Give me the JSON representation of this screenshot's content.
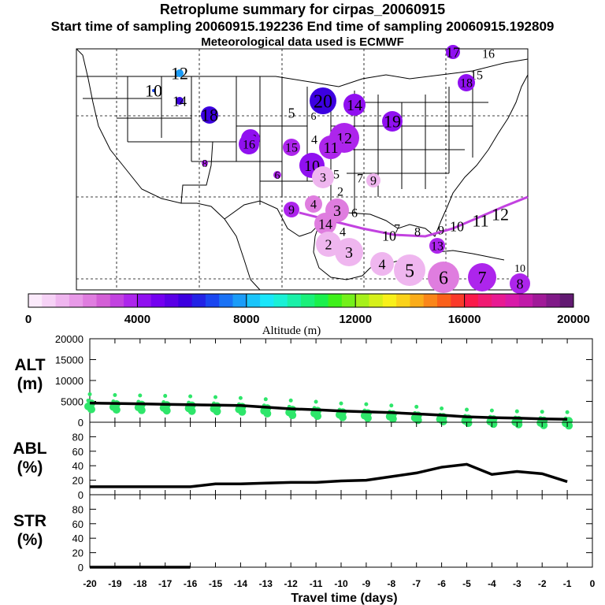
{
  "header": {
    "title": "Retroplume summary for cirpas_20060915",
    "sampling": "Start time of sampling 20060915.192236      End time of sampling 20060915.192809",
    "met": "Meteorological data used is ECMWF"
  },
  "colorbar": {
    "label": "Altitude (m)",
    "ticks": [
      "0",
      "4000",
      "8000",
      "12000",
      "16000",
      "20000"
    ],
    "colors": [
      "#fbeafb",
      "#f6d2f6",
      "#efb6ef",
      "#e89ae8",
      "#df7ddf",
      "#d35fd6",
      "#c242e0",
      "#ad25ec",
      "#9010f0",
      "#7400f0",
      "#5a00e6",
      "#3c00e0",
      "#2222e6",
      "#1a46f0",
      "#1a72f5",
      "#1a9cf8",
      "#1ac4fa",
      "#1ae6fa",
      "#1af0d6",
      "#1af0a8",
      "#1af07a",
      "#1af04c",
      "#3ef01a",
      "#74f01a",
      "#a6f01a",
      "#d6f01a",
      "#f8f01a",
      "#fad21a",
      "#faac1a",
      "#fa861a",
      "#fa601a",
      "#fa3a2a",
      "#fa1a4a",
      "#f01a72",
      "#e81a92",
      "#d81aa8",
      "#c01aa8",
      "#a01a98",
      "#801a88",
      "#621a72"
    ]
  },
  "map": {
    "labels": [
      "12",
      "10",
      "14",
      "18",
      "20",
      "14",
      "5",
      "6",
      "19",
      "17",
      "16",
      "15",
      "18",
      "13",
      "16",
      "4",
      "12",
      "15",
      "11",
      "8",
      "6",
      "10",
      "3",
      "5",
      "7",
      "9",
      "2",
      "9",
      "4",
      "3",
      "6",
      "14",
      "4",
      "2",
      "3",
      "10",
      "7",
      "8",
      "9",
      "4",
      "5",
      "6",
      "7",
      "10",
      "11",
      "12",
      "13",
      "10",
      "8"
    ]
  },
  "chart_data": [
    {
      "type": "line",
      "name": "alt-panel",
      "ylabel": "ALT\n(m)",
      "ylabel_lines": [
        "ALT",
        "(m)"
      ],
      "ylim": [
        0,
        20000
      ],
      "yticks": [
        "20000",
        "15000",
        "10000",
        "5000",
        "0"
      ],
      "x": [
        -20,
        -19,
        -18,
        -17,
        -16,
        -15,
        -14,
        -13,
        -12,
        -11,
        -10,
        -9,
        -8,
        -7,
        -6,
        -5,
        -4,
        -3,
        -2,
        -1
      ],
      "series": [
        {
          "name": "mean altitude",
          "values": [
            4600,
            4500,
            4400,
            4300,
            4200,
            4100,
            4000,
            3600,
            3200,
            3000,
            2700,
            2500,
            2300,
            2000,
            1700,
            1300,
            1100,
            1000,
            800,
            700
          ]
        },
        {
          "name": "altitude spread",
          "values": [
            5200,
            5000,
            4900,
            4800,
            4700,
            4500,
            4300,
            4000,
            3700,
            3400,
            3000,
            2800,
            2500,
            2200,
            1800,
            1500,
            1300,
            1100,
            1000,
            900
          ]
        }
      ]
    },
    {
      "type": "line",
      "name": "abl-panel",
      "ylabel_lines": [
        "ABL",
        "(%)"
      ],
      "ylim": [
        0,
        100
      ],
      "yticks": [
        "80",
        "60",
        "40",
        "20",
        "0"
      ],
      "x": [
        -20,
        -19,
        -18,
        -17,
        -16,
        -15,
        -14,
        -13,
        -12,
        -11,
        -10,
        -9,
        -8,
        -7,
        -6,
        -5,
        -4,
        -3,
        -2,
        -1
      ],
      "series": [
        {
          "name": "ABL fraction",
          "values": [
            11,
            11,
            11,
            11,
            11,
            15,
            15,
            16,
            17,
            17,
            19,
            20,
            25,
            30,
            38,
            42,
            28,
            32,
            29,
            18
          ]
        }
      ]
    },
    {
      "type": "line",
      "name": "str-panel",
      "ylabel_lines": [
        "STR",
        "(%)"
      ],
      "ylim": [
        0,
        100
      ],
      "yticks": [
        "80",
        "60",
        "40",
        "20",
        "0"
      ],
      "x": [
        -20,
        -19,
        -18,
        -17,
        -16
      ],
      "series": [
        {
          "name": "STR fraction",
          "values": [
            0,
            0,
            0,
            0,
            0
          ]
        }
      ]
    }
  ],
  "xaxis": {
    "xlabel": "Travel time (days)",
    "ticks": [
      "-20",
      "-19",
      "-18",
      "-17",
      "-16",
      "-15",
      "-14",
      "-13",
      "-12",
      "-11",
      "-10",
      "-9",
      "-8",
      "-7",
      "-6",
      "-5",
      "-4",
      "-3",
      "-2",
      "-1",
      "0"
    ]
  }
}
